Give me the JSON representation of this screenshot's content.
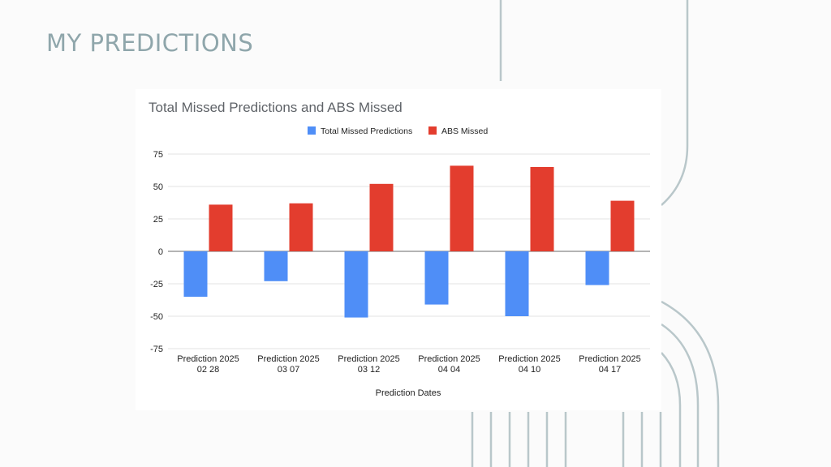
{
  "slide": {
    "title": "MY PREDICTIONS"
  },
  "colors": {
    "title": "#8fa6ab",
    "decoration": "#b9c7ca",
    "series_blue": "#4f8ef7",
    "series_red": "#e33d2e"
  },
  "chart_data": {
    "type": "bar",
    "title": "Total Missed Predictions and ABS Missed",
    "xlabel": "Prediction Dates",
    "ylabel": "",
    "ylim": [
      -75,
      75
    ],
    "yticks": [
      "75",
      "50",
      "25",
      "0",
      "-25",
      "-50",
      "-75"
    ],
    "grid": true,
    "legend_position": "top",
    "categories": [
      [
        "Prediction 2025",
        "02 28"
      ],
      [
        "Prediction 2025",
        "03 07"
      ],
      [
        "Prediction 2025",
        "03 12"
      ],
      [
        "Prediction 2025",
        "04 04"
      ],
      [
        "Prediction 2025",
        "04 10"
      ],
      [
        "Prediction 2025",
        "04 17"
      ]
    ],
    "series": [
      {
        "name": "Total Missed Predictions",
        "color": "#4f8ef7",
        "values": [
          -35,
          -23,
          -51,
          -41,
          -50,
          -26
        ]
      },
      {
        "name": "ABS Missed",
        "color": "#e33d2e",
        "values": [
          36,
          37,
          52,
          66,
          65,
          39
        ]
      }
    ]
  }
}
